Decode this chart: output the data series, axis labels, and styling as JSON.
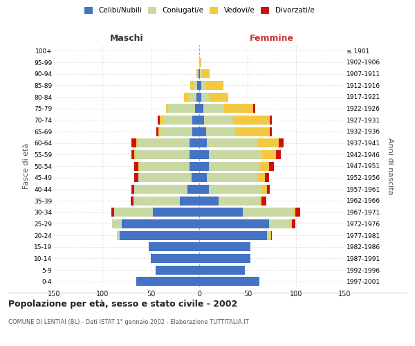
{
  "age_groups": [
    "0-4",
    "5-9",
    "10-14",
    "15-19",
    "20-24",
    "25-29",
    "30-34",
    "35-39",
    "40-44",
    "45-49",
    "50-54",
    "55-59",
    "60-64",
    "65-69",
    "70-74",
    "75-79",
    "80-84",
    "85-89",
    "90-94",
    "95-99",
    "100+"
  ],
  "birth_years": [
    "1997-2001",
    "1992-1996",
    "1987-1991",
    "1982-1986",
    "1977-1981",
    "1972-1976",
    "1967-1971",
    "1962-1966",
    "1957-1961",
    "1952-1956",
    "1947-1951",
    "1942-1946",
    "1937-1941",
    "1932-1936",
    "1927-1931",
    "1922-1926",
    "1917-1921",
    "1912-1916",
    "1907-1911",
    "1902-1906",
    "≤ 1901"
  ],
  "maschi_celibe": [
    65,
    45,
    50,
    52,
    82,
    80,
    48,
    20,
    12,
    8,
    10,
    10,
    10,
    7,
    7,
    4,
    3,
    2,
    1,
    0,
    0
  ],
  "maschi_coniugato": [
    0,
    0,
    0,
    0,
    3,
    10,
    40,
    48,
    55,
    55,
    52,
    55,
    53,
    33,
    30,
    28,
    8,
    4,
    1,
    0,
    0
  ],
  "maschi_vedovo": [
    0,
    0,
    0,
    0,
    0,
    0,
    0,
    0,
    0,
    0,
    1,
    2,
    2,
    2,
    4,
    2,
    5,
    3,
    1,
    0,
    0
  ],
  "maschi_divorziato": [
    0,
    0,
    0,
    0,
    0,
    0,
    3,
    3,
    3,
    4,
    4,
    3,
    5,
    2,
    2,
    0,
    0,
    0,
    0,
    0,
    0
  ],
  "femmine_celibe": [
    62,
    47,
    53,
    53,
    70,
    72,
    45,
    20,
    10,
    8,
    10,
    10,
    8,
    7,
    5,
    4,
    2,
    2,
    1,
    0,
    0
  ],
  "femmine_coniugata": [
    0,
    0,
    0,
    0,
    3,
    22,
    52,
    42,
    55,
    52,
    52,
    55,
    52,
    30,
    30,
    22,
    8,
    5,
    2,
    0,
    0
  ],
  "femmine_vedova": [
    0,
    0,
    0,
    0,
    1,
    2,
    2,
    2,
    5,
    8,
    10,
    14,
    22,
    36,
    38,
    30,
    20,
    18,
    8,
    2,
    0
  ],
  "femmine_divorziata": [
    0,
    0,
    0,
    0,
    1,
    3,
    5,
    5,
    3,
    4,
    5,
    5,
    5,
    2,
    2,
    2,
    0,
    0,
    0,
    0,
    0
  ],
  "colors": {
    "celibe": "#4472c4",
    "coniugato": "#c8d9a4",
    "vedovo": "#f5c842",
    "divorziato": "#cc1111"
  },
  "title": "Popolazione per età, sesso e stato civile - 2002",
  "subtitle": "COMUNE DI LENTIAI (BL) - Dati ISTAT 1° gennaio 2002 - Elaborazione TUTTITALIA.IT",
  "ylabel_left": "Fasce di età",
  "ylabel_right": "Anni di nascita",
  "label_maschi": "Maschi",
  "label_femmine": "Femmine",
  "legend": [
    "Celibi/Nubili",
    "Coniugati/e",
    "Vedovi/e",
    "Divorzati/e"
  ],
  "xlim": 150,
  "background_color": "#ffffff",
  "grid_color": "#cccccc"
}
